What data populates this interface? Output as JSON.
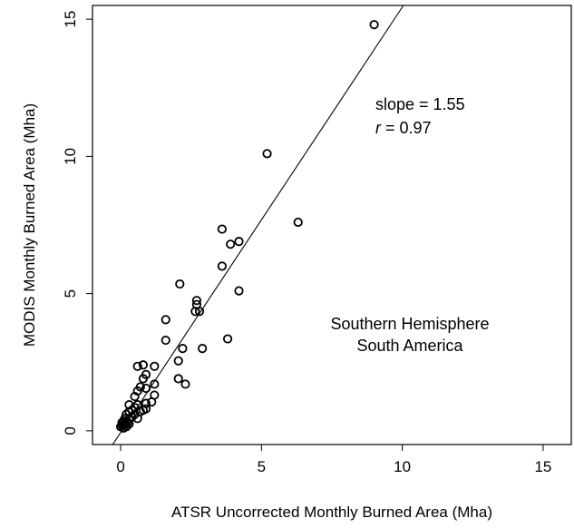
{
  "chart_data": {
    "type": "scatter",
    "title": "",
    "xlabel": "ATSR Uncorrected Monthly Burned Area (Mha)",
    "ylabel": "MODIS Monthly Burned Area (Mha)",
    "xlim": [
      -1.0,
      16.0
    ],
    "ylim": [
      -0.5,
      15.5
    ],
    "xticks": [
      0,
      5,
      10,
      15
    ],
    "yticks": [
      0,
      5,
      10,
      15
    ],
    "grid": false,
    "fit_line": {
      "slope": 1.55,
      "intercept": -0.06
    },
    "annotations": {
      "slope_text": "slope = 1.55",
      "r_symbol": "r",
      "r_text": " = 0.97",
      "region_line1": "Southern Hemisphere",
      "region_line2": "South America"
    },
    "points": [
      [
        9.0,
        14.8
      ],
      [
        5.2,
        10.1
      ],
      [
        6.3,
        7.6
      ],
      [
        3.6,
        7.35
      ],
      [
        3.9,
        6.8
      ],
      [
        4.2,
        6.9
      ],
      [
        3.6,
        6.0
      ],
      [
        2.1,
        5.35
      ],
      [
        4.2,
        5.1
      ],
      [
        2.7,
        4.75
      ],
      [
        2.7,
        4.6
      ],
      [
        2.8,
        4.35
      ],
      [
        2.65,
        4.35
      ],
      [
        1.6,
        4.05
      ],
      [
        1.6,
        3.3
      ],
      [
        3.8,
        3.35
      ],
      [
        2.2,
        3.0
      ],
      [
        2.9,
        3.0
      ],
      [
        2.05,
        2.55
      ],
      [
        2.05,
        1.9
      ],
      [
        2.3,
        1.7
      ],
      [
        0.6,
        2.35
      ],
      [
        0.8,
        2.4
      ],
      [
        1.2,
        2.35
      ],
      [
        0.9,
        2.05
      ],
      [
        0.8,
        1.9
      ],
      [
        1.2,
        1.7
      ],
      [
        0.7,
        1.6
      ],
      [
        0.9,
        1.55
      ],
      [
        0.6,
        1.45
      ],
      [
        1.2,
        1.3
      ],
      [
        0.5,
        1.25
      ],
      [
        0.9,
        1.0
      ],
      [
        1.1,
        1.05
      ],
      [
        0.6,
        0.95
      ],
      [
        0.3,
        0.95
      ],
      [
        0.5,
        0.85
      ],
      [
        0.9,
        0.8
      ],
      [
        0.8,
        0.75
      ],
      [
        0.4,
        0.75
      ],
      [
        0.7,
        0.7
      ],
      [
        0.3,
        0.7
      ],
      [
        0.5,
        0.6
      ],
      [
        0.2,
        0.6
      ],
      [
        0.6,
        0.45
      ],
      [
        0.4,
        0.5
      ],
      [
        0.3,
        0.45
      ],
      [
        0.15,
        0.45
      ],
      [
        0.2,
        0.35
      ],
      [
        0.1,
        0.35
      ],
      [
        0.25,
        0.3
      ],
      [
        0.05,
        0.3
      ],
      [
        0.15,
        0.25
      ],
      [
        0.1,
        0.2
      ],
      [
        0.05,
        0.2
      ],
      [
        0.2,
        0.15
      ],
      [
        0.0,
        0.15
      ],
      [
        0.1,
        0.1
      ],
      [
        0.05,
        0.3
      ],
      [
        0.3,
        0.25
      ]
    ]
  }
}
